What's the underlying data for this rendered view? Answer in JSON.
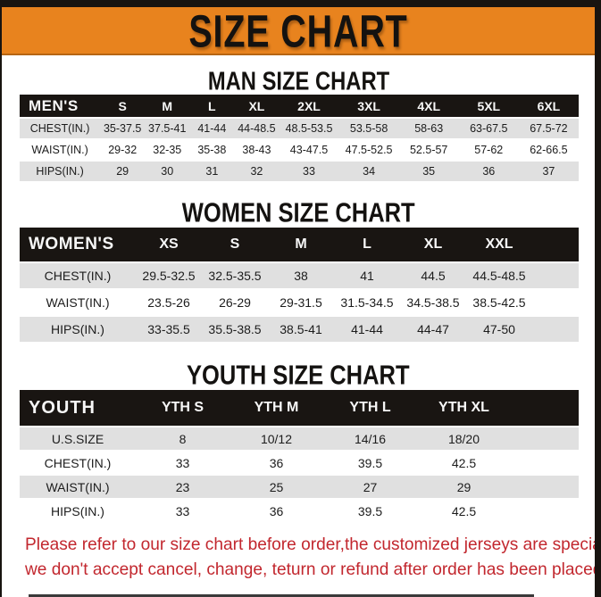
{
  "banner": {
    "title": "SIZE CHART"
  },
  "sections": [
    {
      "heading": "MAN SIZE CHART",
      "table": {
        "header": [
          "MEN'S",
          "S",
          "M",
          "L",
          "XL",
          "2XL",
          "3XL",
          "4XL",
          "5XL",
          "6XL"
        ],
        "rows": [
          [
            "CHEST(IN.)",
            "35-37.5",
            "37.5-41",
            "41-44",
            "44-48.5",
            "48.5-53.5",
            "53.5-58",
            "58-63",
            "63-67.5",
            "67.5-72"
          ],
          [
            "WAIST(IN.)",
            "29-32",
            "32-35",
            "35-38",
            "38-43",
            "43-47.5",
            "47.5-52.5",
            "52.5-57",
            "57-62",
            "62-66.5"
          ],
          [
            "HIPS(IN.)",
            "29",
            "30",
            "31",
            "32",
            "33",
            "34",
            "35",
            "36",
            "37"
          ]
        ]
      }
    },
    {
      "heading": "WOMEN SIZE CHART",
      "table": {
        "header": [
          "WOMEN'S",
          "XS",
          "S",
          "M",
          "L",
          "XL",
          "XXL"
        ],
        "rows": [
          [
            "CHEST(IN.)",
            "29.5-32.5",
            "32.5-35.5",
            "38",
            "41",
            "44.5",
            "44.5-48.5"
          ],
          [
            "WAIST(IN.)",
            "23.5-26",
            "26-29",
            "29-31.5",
            "31.5-34.5",
            "34.5-38.5",
            "38.5-42.5"
          ],
          [
            "HIPS(IN.)",
            "33-35.5",
            "35.5-38.5",
            "38.5-41",
            "41-44",
            "44-47",
            "47-50"
          ]
        ]
      }
    },
    {
      "heading": "YOUTH SIZE CHART",
      "table": {
        "header": [
          "YOUTH",
          "YTH S",
          "YTH M",
          "YTH L",
          "YTH XL"
        ],
        "rows": [
          [
            "U.S.SIZE",
            "8",
            "10/12",
            "14/16",
            "18/20"
          ],
          [
            "CHEST(IN.)",
            "33",
            "36",
            "39.5",
            "42.5"
          ],
          [
            "WAIST(IN.)",
            "23",
            "25",
            "27",
            "29"
          ],
          [
            "HIPS(IN.)",
            "33",
            "36",
            "39.5",
            "42.5"
          ]
        ]
      }
    }
  ],
  "disclaimer": {
    "line1": "Please refer to our size chart before order,the customized jerseys are special products,",
    "line2": "we don't accept cancel, change, teturn or refund after order has been placed!"
  },
  "colors": {
    "banner_bg": "#E8831E",
    "table_header_bg": "#191512",
    "alt_row_bg": "#E0E0E0",
    "disclaimer_red": "#C2272E"
  }
}
